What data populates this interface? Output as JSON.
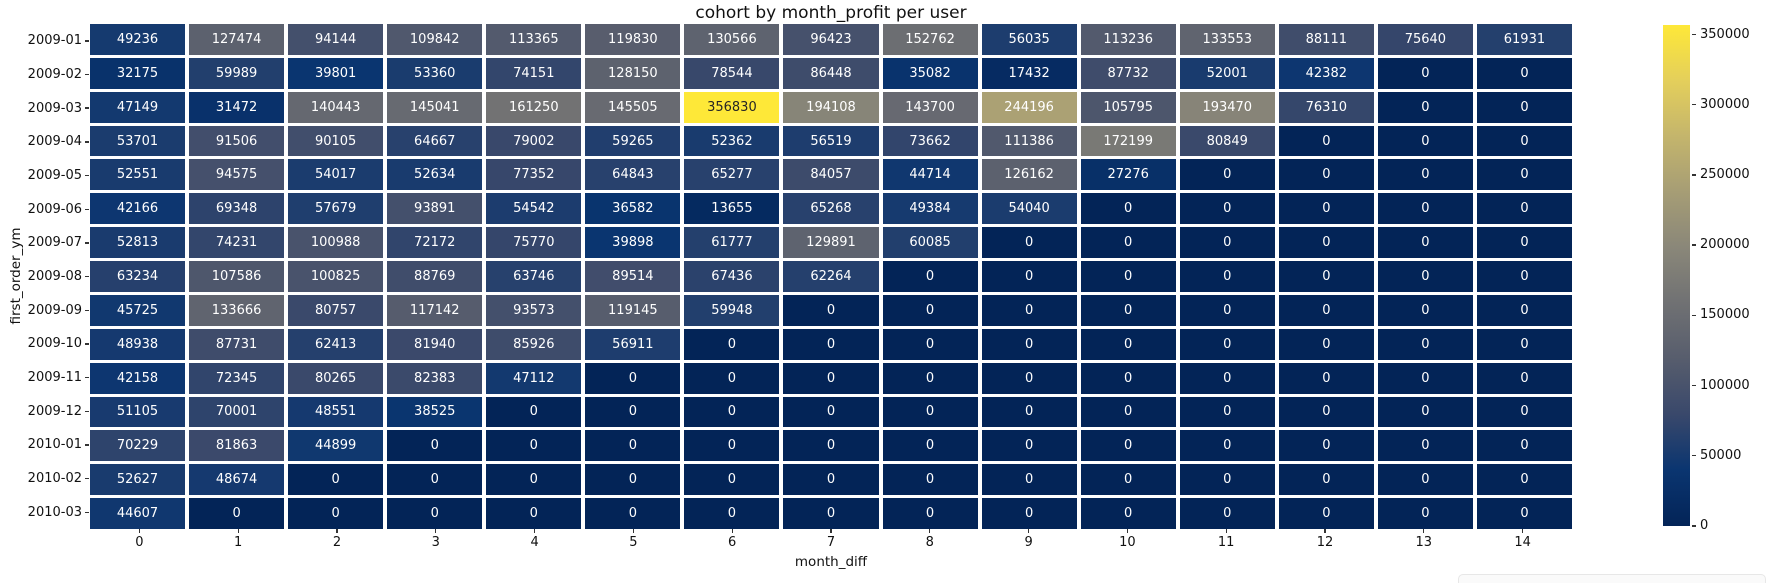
{
  "chart_data": {
    "type": "heatmap",
    "title": "cohort by month_profit per user",
    "xlabel": "month_diff",
    "ylabel": "first_order_ym",
    "rows": [
      "2009-01",
      "2009-02",
      "2009-03",
      "2009-04",
      "2009-05",
      "2009-06",
      "2009-07",
      "2009-08",
      "2009-09",
      "2009-10",
      "2009-11",
      "2009-12",
      "2010-01",
      "2010-02",
      "2010-03"
    ],
    "columns": [
      "0",
      "1",
      "2",
      "3",
      "4",
      "5",
      "6",
      "7",
      "8",
      "9",
      "10",
      "11",
      "12",
      "13",
      "14"
    ],
    "values": [
      [
        49236,
        127474,
        94144,
        109842,
        113365,
        119830,
        130566,
        96423,
        152762,
        56035,
        113236,
        133553,
        88111,
        75640,
        61931
      ],
      [
        32175,
        59989,
        39801,
        53360,
        74151,
        128150,
        78544,
        86448,
        35082,
        17432,
        87732,
        52001,
        42382,
        0,
        0
      ],
      [
        47149,
        31472,
        140443,
        145041,
        161250,
        145505,
        356830,
        194108,
        143700,
        244196,
        105795,
        193470,
        76310,
        0,
        0
      ],
      [
        53701,
        91506,
        90105,
        64667,
        79002,
        59265,
        52362,
        56519,
        73662,
        111386,
        172199,
        80849,
        0,
        0,
        0
      ],
      [
        52551,
        94575,
        54017,
        52634,
        77352,
        64843,
        65277,
        84057,
        44714,
        126162,
        27276,
        0,
        0,
        0,
        0
      ],
      [
        42166,
        69348,
        57679,
        93891,
        54542,
        36582,
        13655,
        65268,
        49384,
        54040,
        0,
        0,
        0,
        0,
        0
      ],
      [
        52813,
        74231,
        100988,
        72172,
        75770,
        39898,
        61777,
        129891,
        60085,
        0,
        0,
        0,
        0,
        0,
        0
      ],
      [
        63234,
        107586,
        100825,
        88769,
        63746,
        89514,
        67436,
        62264,
        0,
        0,
        0,
        0,
        0,
        0,
        0
      ],
      [
        45725,
        133666,
        80757,
        117142,
        93573,
        119145,
        59948,
        0,
        0,
        0,
        0,
        0,
        0,
        0,
        0
      ],
      [
        48938,
        87731,
        62413,
        81940,
        85926,
        56911,
        0,
        0,
        0,
        0,
        0,
        0,
        0,
        0,
        0
      ],
      [
        42158,
        72345,
        80265,
        82383,
        47112,
        0,
        0,
        0,
        0,
        0,
        0,
        0,
        0,
        0,
        0
      ],
      [
        51105,
        70001,
        48551,
        38525,
        0,
        0,
        0,
        0,
        0,
        0,
        0,
        0,
        0,
        0,
        0
      ],
      [
        70229,
        81863,
        44899,
        0,
        0,
        0,
        0,
        0,
        0,
        0,
        0,
        0,
        0,
        0,
        0
      ],
      [
        52627,
        48674,
        0,
        0,
        0,
        0,
        0,
        0,
        0,
        0,
        0,
        0,
        0,
        0,
        0
      ],
      [
        44607,
        0,
        0,
        0,
        0,
        0,
        0,
        0,
        0,
        0,
        0,
        0,
        0,
        0,
        0
      ]
    ],
    "vmin": 0,
    "vmax": 356830,
    "colormap": "cividis",
    "colormap_anchors": [
      "#032457",
      "#0a3570",
      "#39486b",
      "#575d6d",
      "#707173",
      "#8a8779",
      "#a69d75",
      "#c4b56c",
      "#e4cf5b",
      "#fee838"
    ],
    "colorbar_ticks": [
      0,
      50000,
      100000,
      150000,
      200000,
      250000,
      300000,
      350000
    ],
    "annotation_colors": {
      "light": "#ffffff",
      "dark": "#262626"
    },
    "legend_position": "right",
    "grid": "off"
  }
}
